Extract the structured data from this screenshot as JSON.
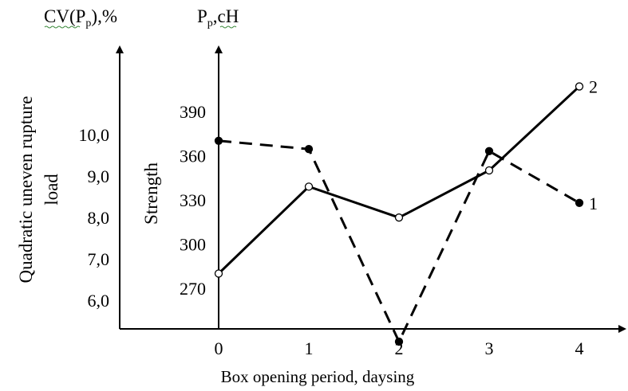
{
  "chart_data": {
    "type": "line",
    "xlabel": "Box opening period, daysing",
    "x_ticks": [
      "0",
      "1",
      "2",
      "3",
      "4"
    ],
    "x": [
      0,
      1,
      2,
      3,
      4
    ],
    "left_axis": {
      "header": "CV(Pp),%",
      "header_main": "CV(P",
      "header_sub": "p",
      "header_tail": "),%",
      "label_line1": "Quadratic uneven rupture",
      "label_line2": "load",
      "ticks": [
        "6,0",
        "7,0",
        "8,0",
        "9,0",
        "10,0"
      ],
      "tick_values": [
        6.0,
        7.0,
        8.0,
        9.0,
        10.0
      ]
    },
    "right_axis": {
      "header": "Pp,cH",
      "header_main": "P",
      "header_sub": "p",
      "header_tail": ",cH",
      "label": "Strength",
      "ticks": [
        "270",
        "300",
        "330",
        "360",
        "390"
      ],
      "tick_values": [
        270,
        300,
        330,
        360,
        390
      ]
    },
    "series": [
      {
        "label": "1",
        "axis": "left",
        "style": "dashed",
        "marker": "filled",
        "values": [
          9.85,
          9.65,
          5.0,
          9.6,
          8.35
        ]
      },
      {
        "label": "2",
        "axis": "right",
        "style": "solid",
        "marker": "open",
        "values": [
          280,
          339,
          318,
          350,
          407
        ]
      }
    ]
  }
}
